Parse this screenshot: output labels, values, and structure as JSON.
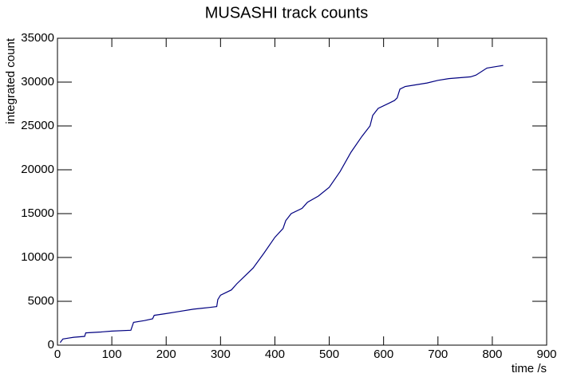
{
  "chart_data": {
    "type": "line",
    "title": "MUSASHI track counts",
    "x_label": "time /s",
    "y_label": "integrated count",
    "x": [
      5,
      10,
      20,
      30,
      50,
      52,
      80,
      100,
      135,
      140,
      160,
      175,
      178,
      200,
      220,
      250,
      280,
      293,
      295,
      300,
      320,
      330,
      340,
      360,
      380,
      400,
      415,
      420,
      430,
      450,
      460,
      480,
      500,
      520,
      540,
      560,
      575,
      580,
      590,
      610,
      620,
      625,
      630,
      640,
      680,
      700,
      720,
      760,
      770,
      790,
      810,
      820
    ],
    "values": [
      300,
      700,
      800,
      900,
      1000,
      1400,
      1500,
      1600,
      1700,
      2600,
      2800,
      3000,
      3400,
      3600,
      3800,
      4100,
      4300,
      4400,
      5200,
      5700,
      6300,
      7000,
      7600,
      8800,
      10500,
      12300,
      13300,
      14200,
      15000,
      15600,
      16300,
      17000,
      18000,
      19800,
      22000,
      23800,
      25000,
      26200,
      27000,
      27600,
      27900,
      28200,
      29200,
      29500,
      29900,
      30200,
      30400,
      30600,
      30800,
      31600,
      31800,
      31900
    ],
    "color": "#000080",
    "xlim": [
      0,
      900
    ],
    "xticks": [
      0,
      100,
      200,
      300,
      400,
      500,
      600,
      700,
      800,
      900
    ],
    "ylim": [
      0,
      35000
    ],
    "yticks": [
      0,
      5000,
      10000,
      15000,
      20000,
      25000,
      30000,
      35000
    ]
  }
}
